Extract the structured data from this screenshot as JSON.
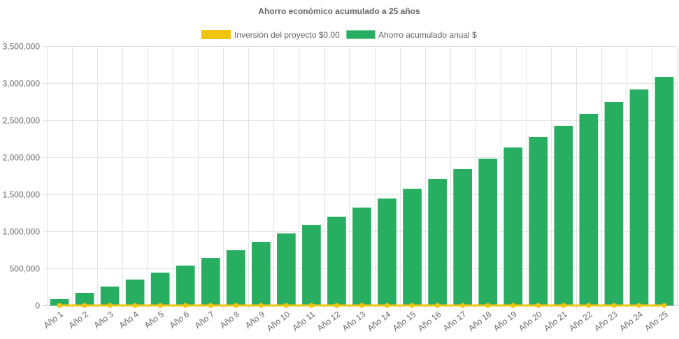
{
  "chart_data": {
    "type": "bar",
    "title": "Ahorro económico acumulado a 25 años",
    "xlabel": "",
    "ylabel": "",
    "ylim": [
      0,
      3500000
    ],
    "yticks": [
      "0",
      "500,000",
      "1,000,000",
      "1,500,000",
      "2,000,000",
      "2,500,000",
      "3,000,000",
      "3,500,000"
    ],
    "grid": true,
    "legend_position": "top",
    "categories": [
      "Año 1",
      "Año 2",
      "Año 3",
      "Año 4",
      "Año 5",
      "Año 6",
      "Año 7",
      "Año 8",
      "Año 9",
      "Año 10",
      "Año 11",
      "Año 12",
      "Año 13",
      "Año 14",
      "Año 15",
      "Año 16",
      "Año 17",
      "Año 18",
      "Año 19",
      "Año 20",
      "Año 21",
      "Año 22",
      "Año 23",
      "Año 24",
      "Año 25"
    ],
    "series": [
      {
        "name": "Inversión del proyecto $0.00",
        "type": "line",
        "color": "#f1c40f",
        "values": [
          0,
          0,
          0,
          0,
          0,
          0,
          0,
          0,
          0,
          0,
          0,
          0,
          0,
          0,
          0,
          0,
          0,
          0,
          0,
          0,
          0,
          0,
          0,
          0,
          0
        ]
      },
      {
        "name": "Ahorro acumulado anual $",
        "type": "bar",
        "color": "#27ae60",
        "values": [
          85000,
          170000,
          255000,
          349000,
          443000,
          538000,
          641000,
          745000,
          858000,
          972000,
          1085000,
          1198000,
          1321000,
          1443000,
          1575000,
          1708000,
          1840000,
          1981000,
          2132000,
          2274000,
          2425000,
          2585000,
          2745000,
          2915000,
          3085000
        ]
      }
    ]
  }
}
